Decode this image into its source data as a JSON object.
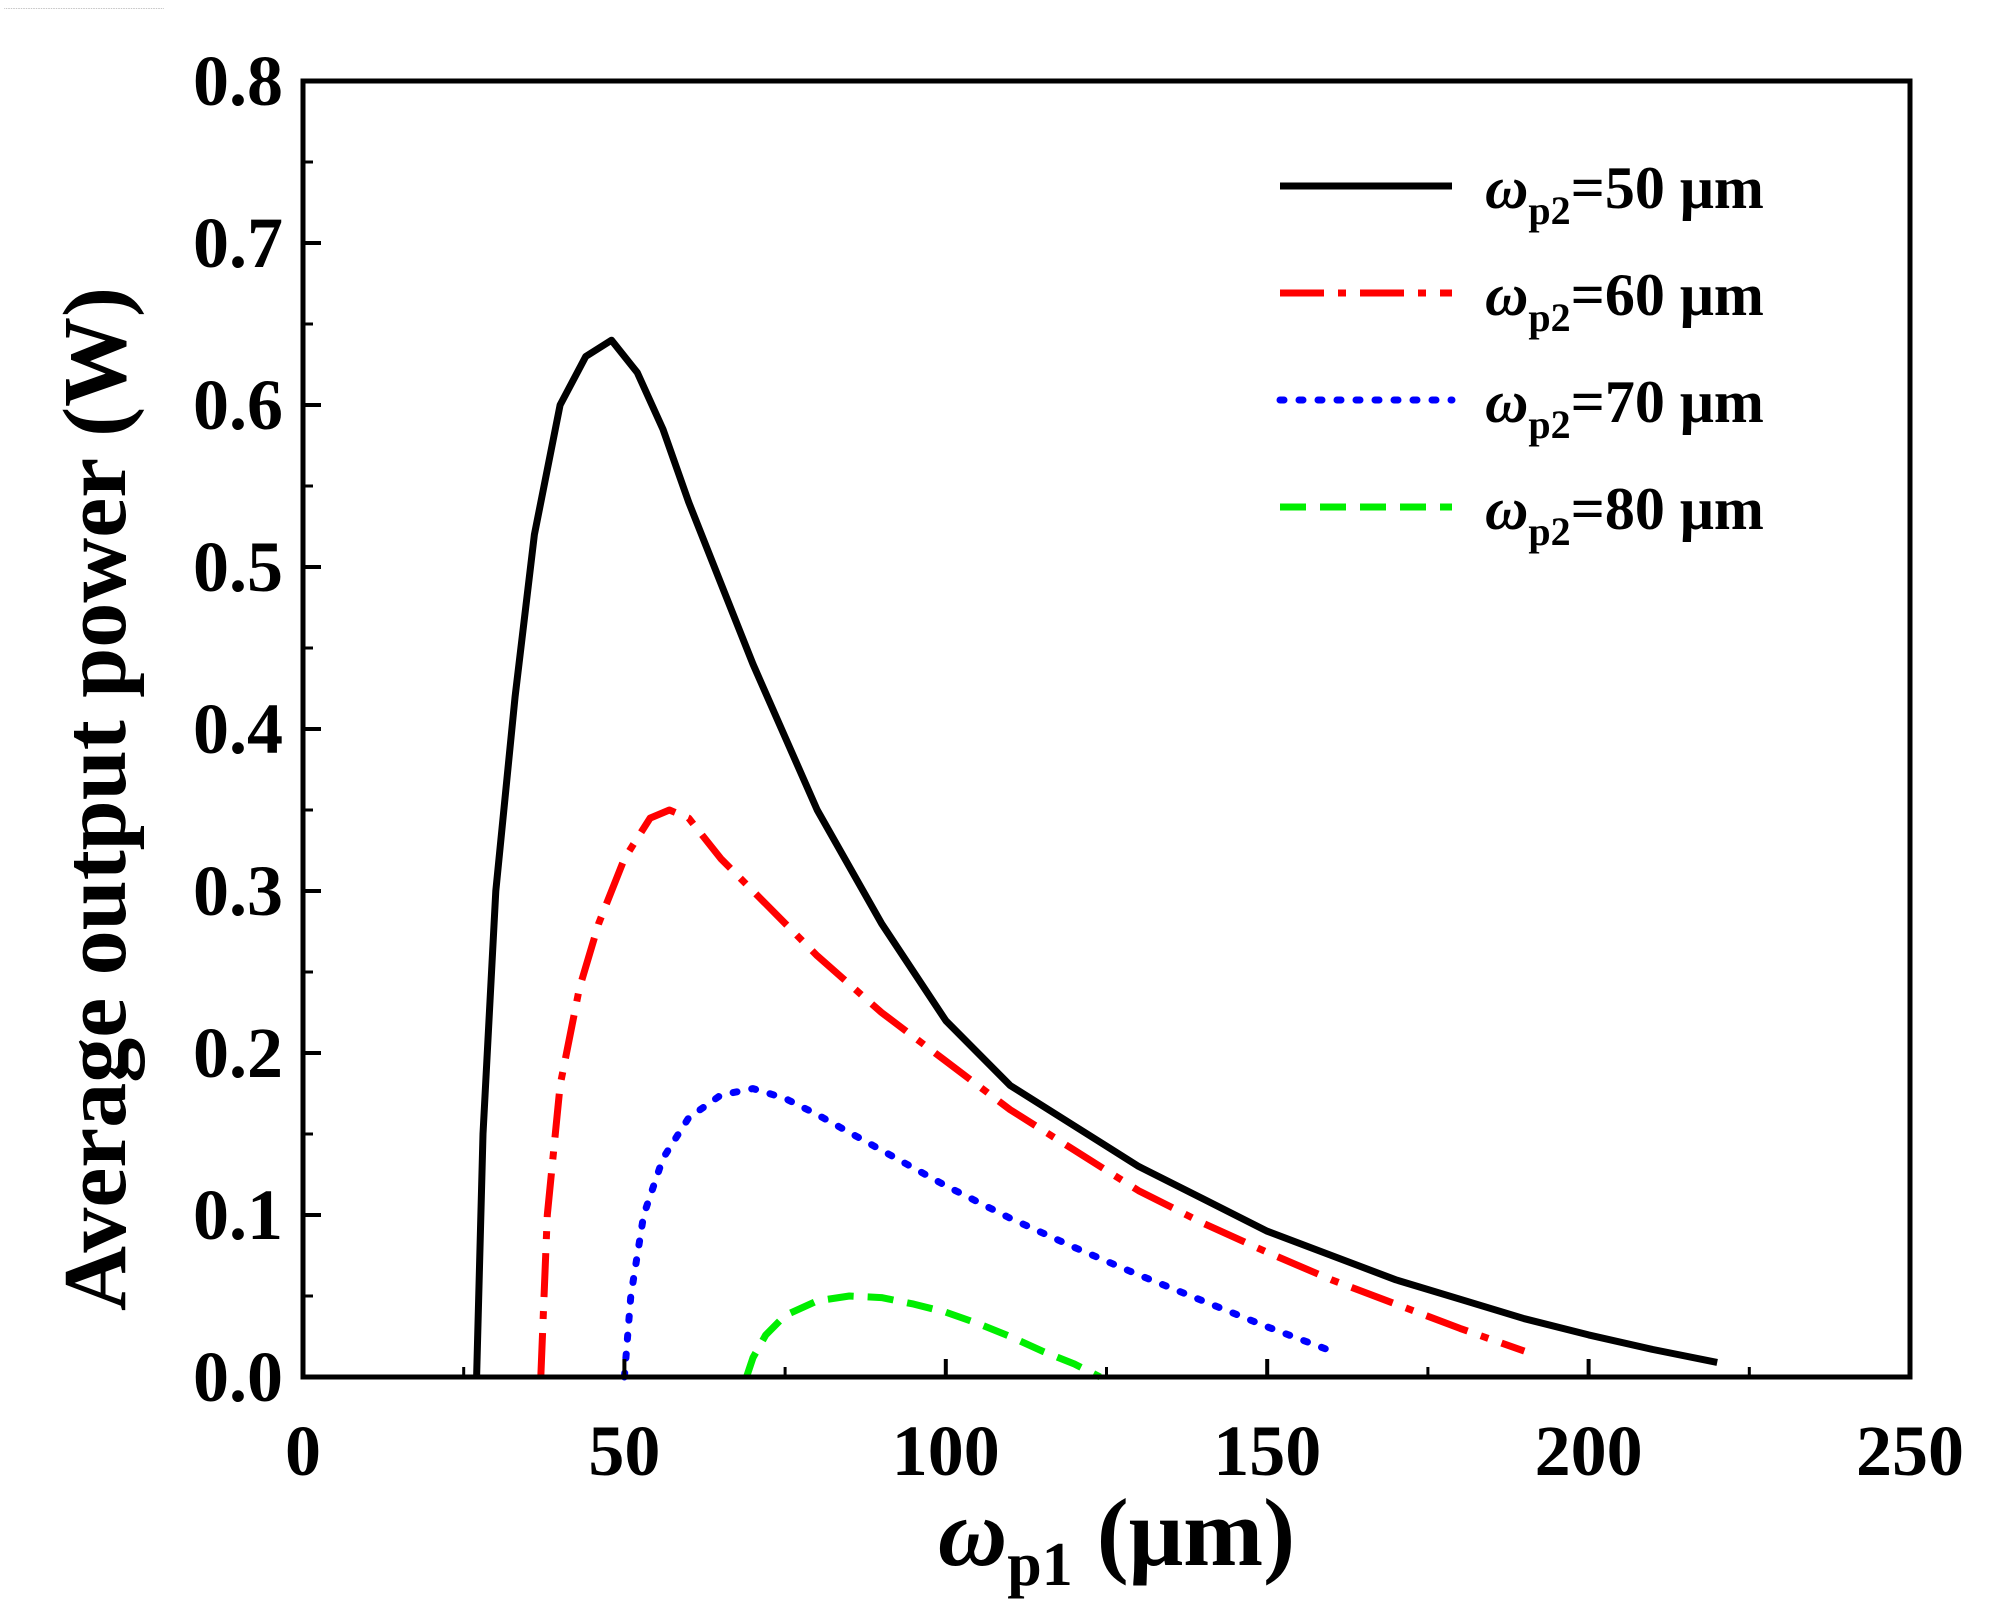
{
  "header_note": "……………………………………………………………………………………",
  "chart_data": {
    "type": "line",
    "title": "",
    "xlabel": {
      "symbol": "ω",
      "sub": "p1",
      "unit": " (μm)"
    },
    "ylabel": "Average output power (W)",
    "xlim": [
      0,
      250
    ],
    "ylim": [
      0,
      0.8
    ],
    "x_ticks": [
      0,
      50,
      100,
      150,
      200,
      250
    ],
    "x_tick_labels": [
      "0",
      "50",
      "100",
      "150",
      "200",
      "250"
    ],
    "y_ticks": [
      0,
      0.1,
      0.2,
      0.3,
      0.4,
      0.5,
      0.6,
      0.7,
      0.8
    ],
    "y_tick_labels": [
      "0.0",
      "0.1",
      "0.2",
      "0.3",
      "0.4",
      "0.5",
      "0.6",
      "0.7",
      "0.8"
    ],
    "grid": false,
    "legend_position": "top-right",
    "series": [
      {
        "name": "ωp2=50 μm",
        "legend": {
          "symbol": "ω",
          "sub": "p2",
          "rest": "=50 μm"
        },
        "color": "#000000",
        "style": "solid",
        "x": [
          27,
          28,
          30,
          33,
          36,
          40,
          44,
          48,
          52,
          56,
          60,
          65,
          70,
          75,
          80,
          90,
          100,
          110,
          120,
          130,
          140,
          150,
          160,
          170,
          180,
          190,
          200,
          210,
          220
        ],
        "y": [
          0.0,
          0.15,
          0.3,
          0.42,
          0.52,
          0.6,
          0.63,
          0.64,
          0.62,
          0.585,
          0.54,
          0.49,
          0.44,
          0.395,
          0.35,
          0.28,
          0.22,
          0.18,
          0.155,
          0.13,
          0.11,
          0.09,
          0.075,
          0.06,
          0.048,
          0.036,
          0.026,
          0.017,
          0.009
        ]
      },
      {
        "name": "ωp2=60 μm",
        "legend": {
          "symbol": "ω",
          "sub": "p2",
          "rest": "=60 μm"
        },
        "color": "#ff0000",
        "style": "dashdot",
        "x": [
          37,
          38,
          40,
          43,
          46,
          50,
          54,
          57,
          60,
          65,
          70,
          80,
          90,
          100,
          110,
          120,
          130,
          140,
          150,
          160,
          170,
          180,
          190
        ],
        "y": [
          0.0,
          0.1,
          0.18,
          0.24,
          0.28,
          0.32,
          0.345,
          0.35,
          0.345,
          0.32,
          0.3,
          0.26,
          0.225,
          0.195,
          0.165,
          0.14,
          0.115,
          0.095,
          0.077,
          0.06,
          0.045,
          0.03,
          0.016
        ]
      },
      {
        "name": "ωp2=70 μm",
        "legend": {
          "symbol": "ω",
          "sub": "p2",
          "rest": "=70 μm"
        },
        "color": "#0000ff",
        "style": "dotted",
        "x": [
          50,
          51,
          53,
          56,
          60,
          65,
          70,
          75,
          80,
          90,
          100,
          110,
          120,
          130,
          140,
          150,
          160
        ],
        "y": [
          0.0,
          0.05,
          0.1,
          0.135,
          0.16,
          0.174,
          0.178,
          0.172,
          0.162,
          0.14,
          0.118,
          0.098,
          0.08,
          0.063,
          0.047,
          0.031,
          0.016
        ]
      },
      {
        "name": "ωp2=80 μm",
        "legend": {
          "symbol": "ω",
          "sub": "p2",
          "rest": "=80 μm"
        },
        "color": "#00ee00",
        "style": "dashed",
        "x": [
          69,
          70,
          72,
          75,
          80,
          85,
          90,
          95,
          100,
          105,
          110,
          115,
          120,
          124
        ],
        "y": [
          0.0,
          0.012,
          0.026,
          0.038,
          0.047,
          0.05,
          0.049,
          0.045,
          0.04,
          0.033,
          0.025,
          0.016,
          0.008,
          0.0
        ]
      }
    ]
  }
}
